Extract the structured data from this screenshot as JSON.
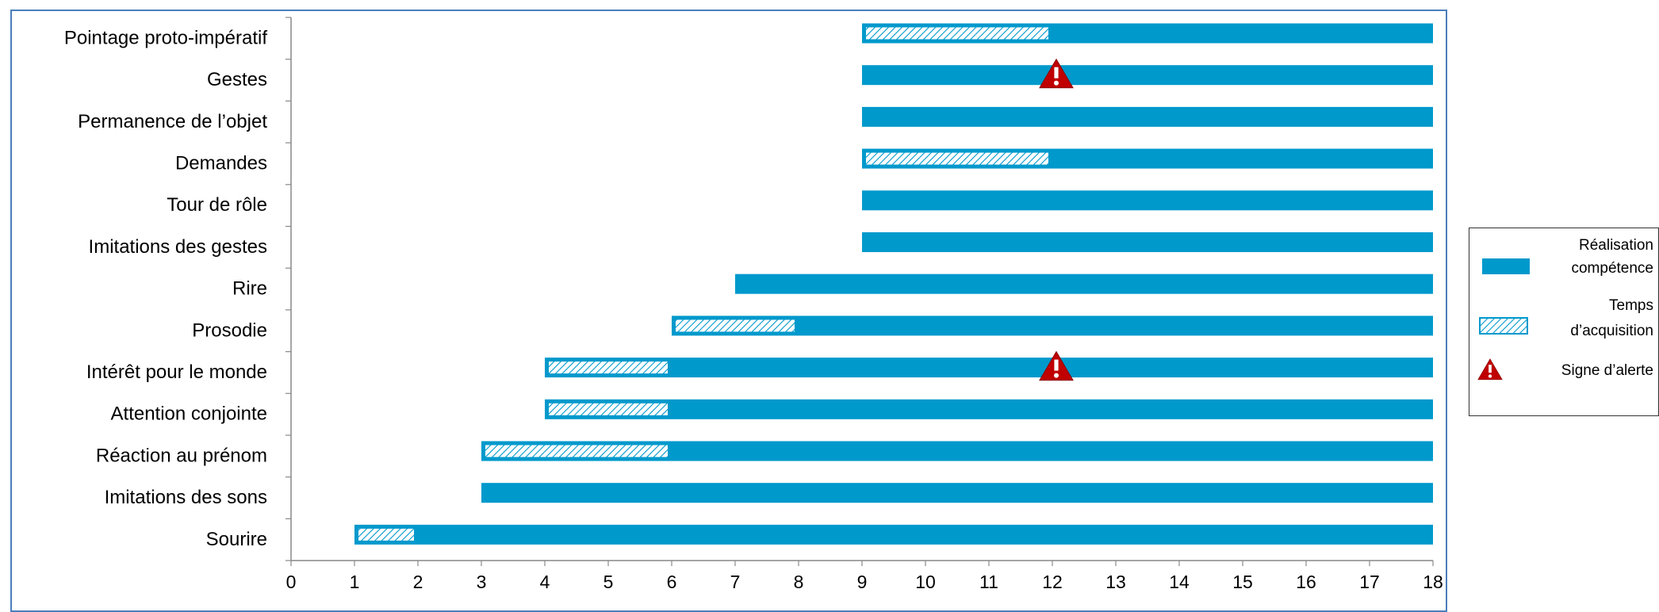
{
  "chart_data": {
    "type": "bar",
    "subtype": "horizontal-range",
    "title": "",
    "xlabel": "",
    "ylabel": "",
    "xlim": [
      0,
      18
    ],
    "x_ticks": [
      "0",
      "1",
      "2",
      "3",
      "4",
      "5",
      "6",
      "7",
      "8",
      "9",
      "10",
      "11",
      "12",
      "13",
      "14",
      "15",
      "16",
      "17",
      "18"
    ],
    "grid": false,
    "legend_position": "right",
    "colors": {
      "bar": "#0099cc",
      "hatch": "#0099cc",
      "alert": "#c00000",
      "frame": "#4a7ebb"
    },
    "categories": [
      "Pointage proto-impératif",
      "Gestes",
      "Permanence de l’objet",
      "Demandes",
      "Tour de rôle",
      "Imitations des gestes",
      "Rire",
      "Prosodie",
      "Intérêt pour le monde",
      "Attention conjointe",
      "Réaction au prénom",
      "Imitations des sons",
      "Sourire"
    ],
    "bars": [
      {
        "label": "Pointage proto-impératif",
        "start": 9,
        "end": 18,
        "acq_start": 9,
        "acq_end": 12,
        "alert": null
      },
      {
        "label": "Gestes",
        "start": 9,
        "end": 18,
        "acq_start": null,
        "acq_end": null,
        "alert": 12
      },
      {
        "label": "Permanence de l’objet",
        "start": 9,
        "end": 18,
        "acq_start": null,
        "acq_end": null,
        "alert": null
      },
      {
        "label": "Demandes",
        "start": 9,
        "end": 18,
        "acq_start": 9,
        "acq_end": 12,
        "alert": null
      },
      {
        "label": "Tour de rôle",
        "start": 9,
        "end": 18,
        "acq_start": null,
        "acq_end": null,
        "alert": null
      },
      {
        "label": "Imitations des gestes",
        "start": 9,
        "end": 18,
        "acq_start": null,
        "acq_end": null,
        "alert": null
      },
      {
        "label": "Rire",
        "start": 7,
        "end": 18,
        "acq_start": null,
        "acq_end": null,
        "alert": null
      },
      {
        "label": "Prosodie",
        "start": 6,
        "end": 18,
        "acq_start": 6,
        "acq_end": 8,
        "alert": null
      },
      {
        "label": "Intérêt pour le monde",
        "start": 4,
        "end": 18,
        "acq_start": 4,
        "acq_end": 6,
        "alert": 12
      },
      {
        "label": "Attention conjointe",
        "start": 4,
        "end": 18,
        "acq_start": 4,
        "acq_end": 6,
        "alert": null
      },
      {
        "label": "Réaction au prénom",
        "start": 3,
        "end": 18,
        "acq_start": 3,
        "acq_end": 6,
        "alert": null
      },
      {
        "label": "Imitations des sons",
        "start": 3,
        "end": 18,
        "acq_start": null,
        "acq_end": null,
        "alert": null
      },
      {
        "label": "Sourire",
        "start": 1,
        "end": 18,
        "acq_start": 1,
        "acq_end": 2,
        "alert": null
      }
    ],
    "legend": [
      {
        "key": "realisation",
        "line1": "Réalisation",
        "line2": "compétence"
      },
      {
        "key": "acquisition",
        "line1": "Temps",
        "line2": "d’acquisition"
      },
      {
        "key": "alerte",
        "line1": "Signe d’alerte",
        "line2": ""
      }
    ]
  }
}
